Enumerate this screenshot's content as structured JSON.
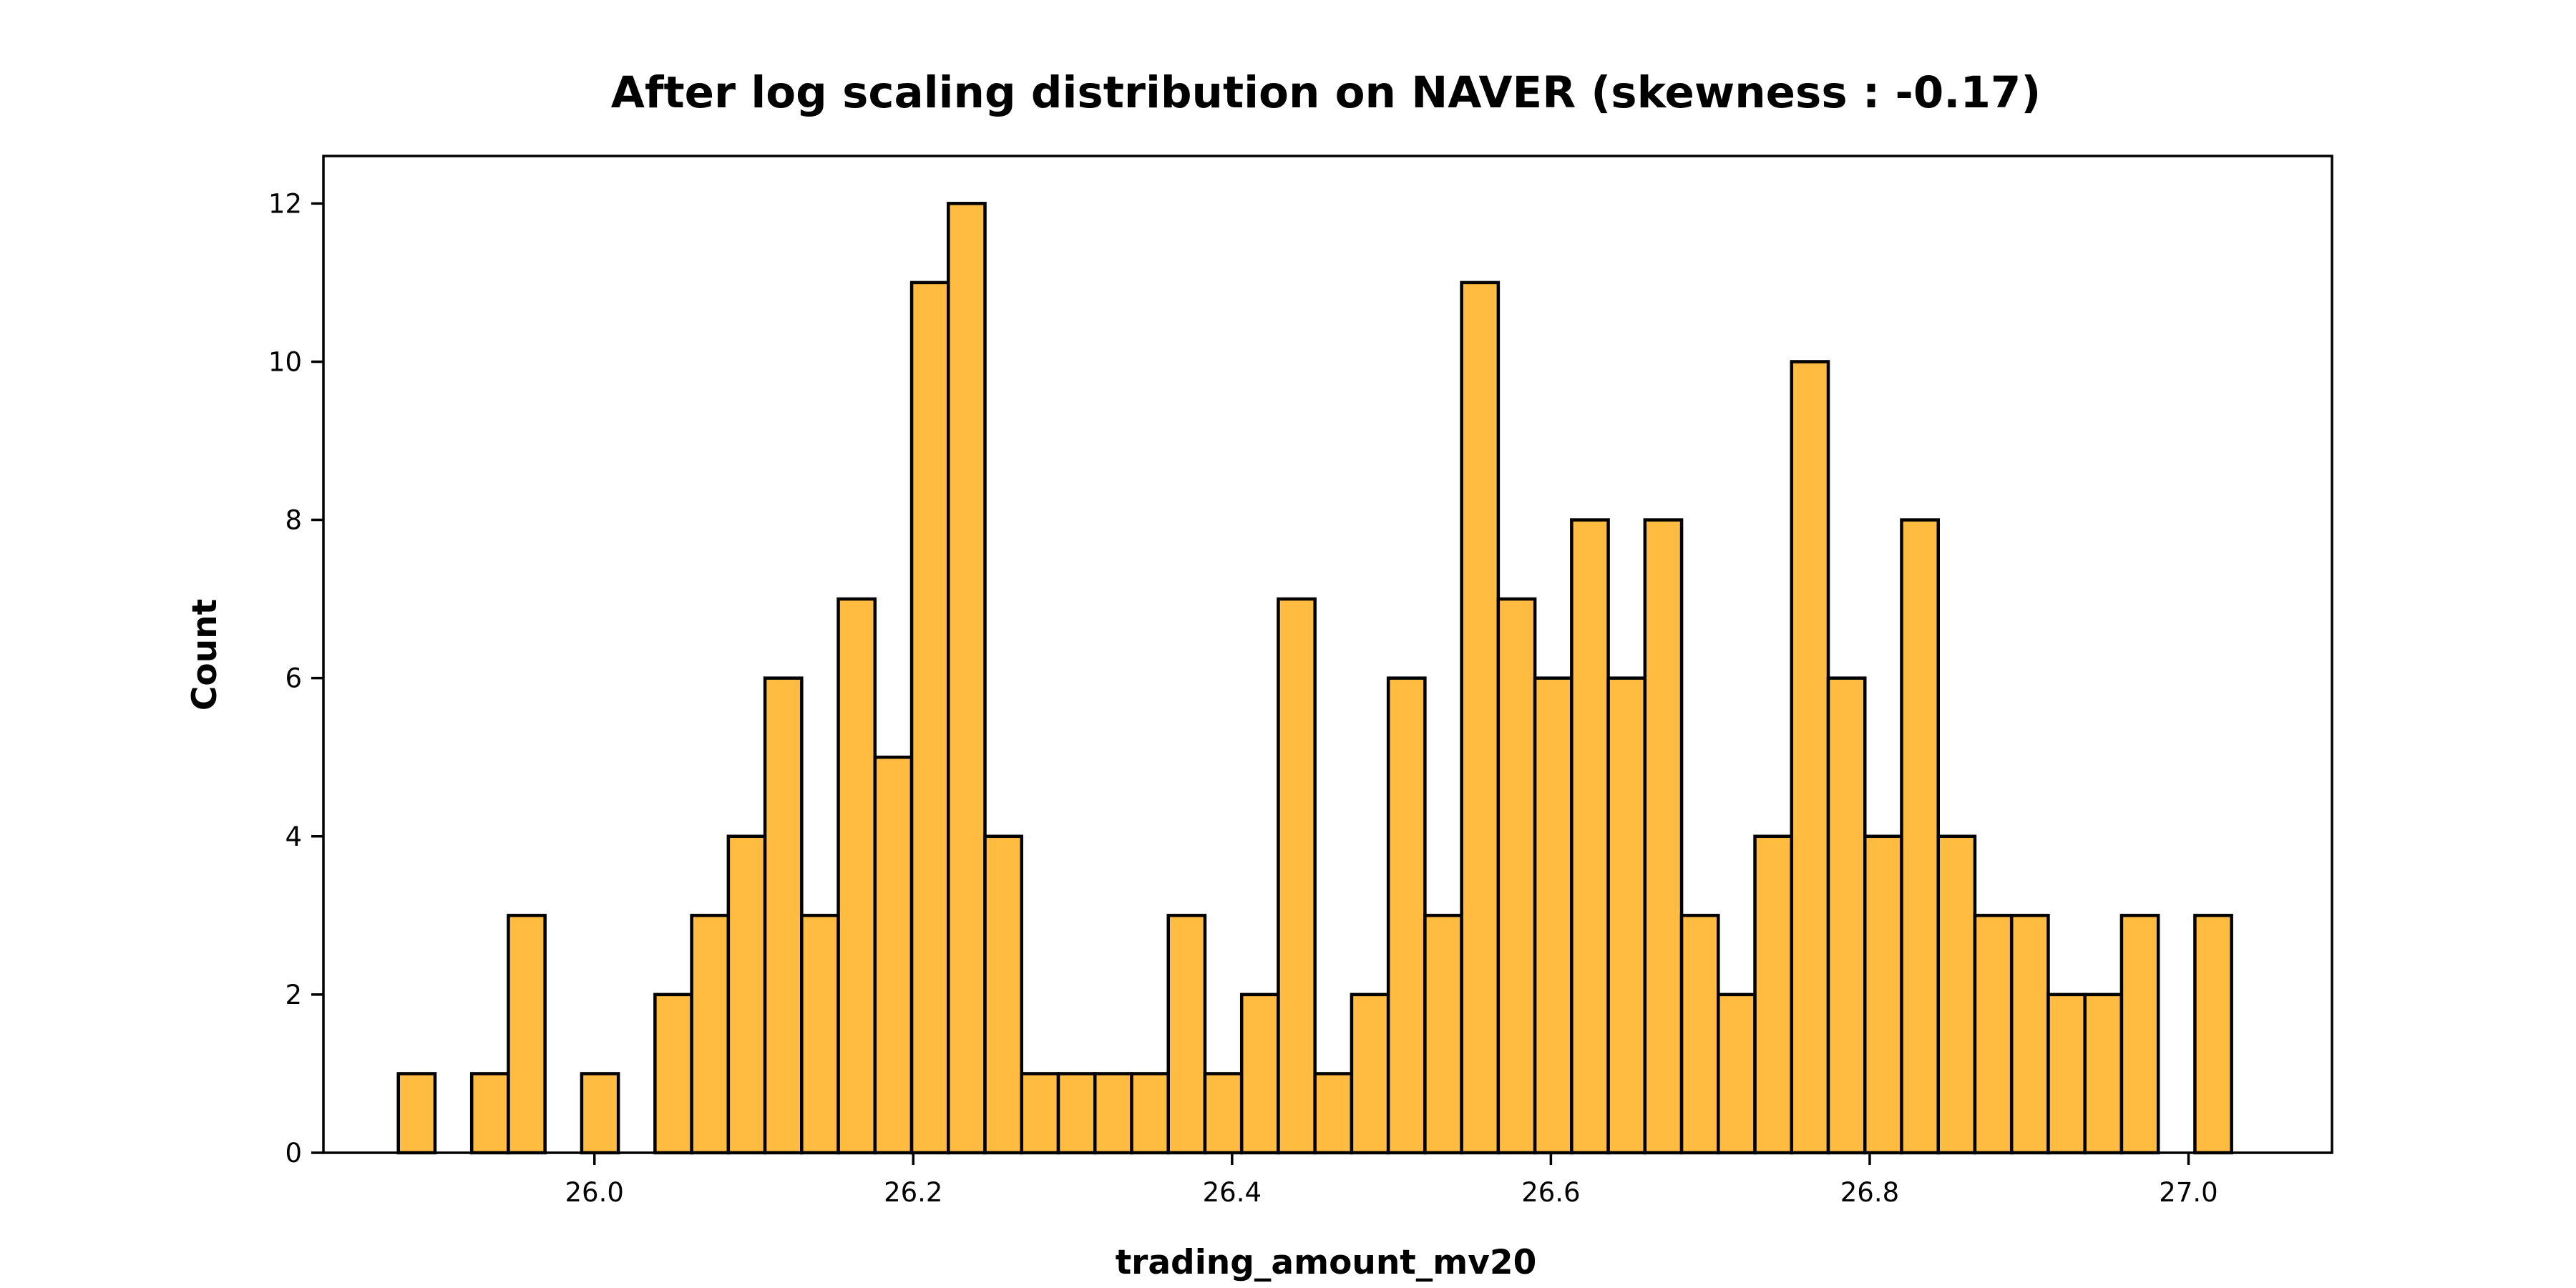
{
  "chart_data": {
    "type": "bar",
    "title": "After log scaling distribution on NAVER (skewness : -0.17)",
    "xlabel": "trading_amount_mv20",
    "ylabel": "Count",
    "bin_width": 0.023,
    "bin_start": 25.877,
    "values": [
      1,
      0,
      1,
      3,
      0,
      1,
      0,
      2,
      3,
      4,
      6,
      3,
      7,
      5,
      11,
      12,
      4,
      1,
      1,
      1,
      1,
      3,
      1,
      2,
      7,
      1,
      2,
      6,
      3,
      11,
      7,
      6,
      8,
      6,
      8,
      3,
      2,
      4,
      10,
      6,
      4,
      8,
      4,
      3,
      3,
      2,
      2,
      3,
      0,
      3
    ],
    "xlim": [
      25.83,
      27.09
    ],
    "ylim": [
      0,
      12.6
    ],
    "xticks": [
      "26.0",
      "26.2",
      "26.4",
      "26.6",
      "26.8",
      "27.0"
    ],
    "yticks": [
      "0",
      "2",
      "4",
      "6",
      "8",
      "10",
      "12"
    ],
    "bar_color": "#FFBC41",
    "edge_color": "#000000",
    "grid": false
  }
}
